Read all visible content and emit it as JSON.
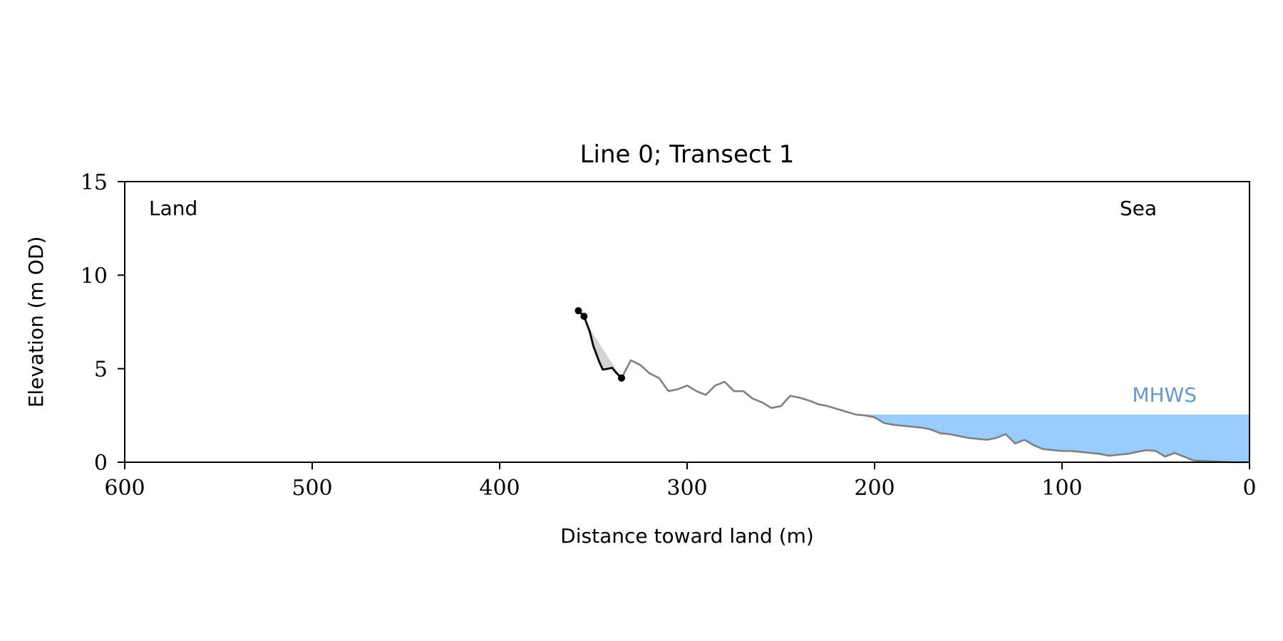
{
  "chart_data": {
    "type": "line",
    "title": "Line 0; Transect 1",
    "xlabel": "Distance toward land (m)",
    "ylabel": "Elevation (m OD)",
    "xlim": [
      600,
      0
    ],
    "ylim": [
      0,
      15
    ],
    "x_reversed": true,
    "xticks": [
      600,
      500,
      400,
      300,
      200,
      100,
      0
    ],
    "yticks": [
      0,
      5,
      10,
      15
    ],
    "grid": false,
    "annotations": {
      "land": "Land",
      "sea": "Sea",
      "mhws": "MHWS"
    },
    "mhws_level": 2.55,
    "colors": {
      "profile": "#808080",
      "cliff": "#000000",
      "cliff_fill": "#d3d3d3",
      "water": "#99ccff",
      "mhws_label": "#6699cc"
    },
    "series": [
      {
        "x": [
          0,
          10,
          20,
          30,
          35,
          40,
          45,
          50,
          55,
          60,
          65,
          70,
          75,
          80,
          85,
          90,
          95,
          100,
          105,
          110,
          115,
          120,
          125,
          130,
          135,
          140,
          145,
          150,
          155,
          160,
          165,
          170,
          175,
          180,
          185,
          190,
          195,
          200,
          205,
          210,
          215,
          220,
          225,
          230,
          235,
          240,
          245,
          250,
          255,
          260,
          265,
          270,
          275,
          280,
          285,
          290,
          295,
          300,
          305,
          310,
          315,
          320,
          325,
          330,
          335
        ],
        "values": [
          0.0,
          0.0,
          0.05,
          0.1,
          0.3,
          0.5,
          0.3,
          0.6,
          0.65,
          0.55,
          0.45,
          0.4,
          0.35,
          0.45,
          0.5,
          0.55,
          0.6,
          0.6,
          0.65,
          0.7,
          0.9,
          1.2,
          1.0,
          1.5,
          1.3,
          1.2,
          1.25,
          1.3,
          1.4,
          1.5,
          1.55,
          1.75,
          1.85,
          1.9,
          1.95,
          2.0,
          2.1,
          2.4,
          2.5,
          2.55,
          2.7,
          2.85,
          3.0,
          3.1,
          3.3,
          3.45,
          3.55,
          3.0,
          2.9,
          3.2,
          3.4,
          3.8,
          3.8,
          4.3,
          4.1,
          3.6,
          3.8,
          4.1,
          3.9,
          3.8,
          4.5,
          4.75,
          5.2,
          5.45,
          4.5
        ]
      },
      {
        "x": [
          335,
          338,
          340,
          342,
          345,
          347,
          350,
          352,
          355,
          356,
          358
        ],
        "values": [
          4.5,
          4.8,
          5.05,
          5.0,
          4.95,
          5.4,
          6.2,
          7.0,
          7.8,
          7.9,
          8.1
        ]
      }
    ]
  }
}
